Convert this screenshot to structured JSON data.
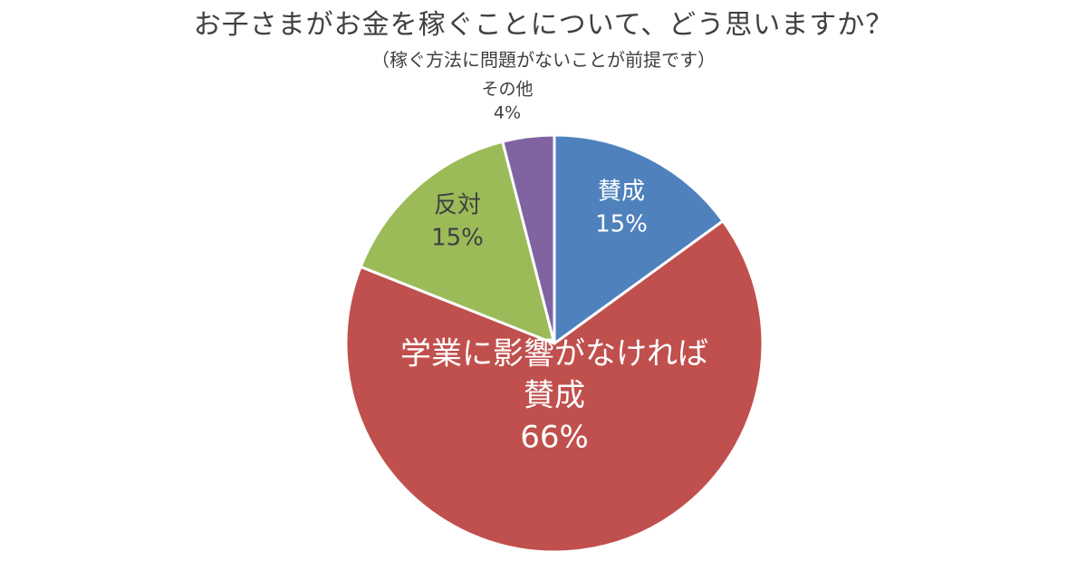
{
  "title": "お子さまがお金を稼ぐことについて、どう思いますか？",
  "subtitle": "（稼ぐ方法に問題がないことが前提です）",
  "chart_data": {
    "type": "pie",
    "title": "お子さまがお金を稼ぐことについて、どう思いますか？",
    "subtitle": "（稼ぐ方法に問題がないことが前提です）",
    "start": "12 o'clock",
    "direction": "clockwise",
    "slices": [
      {
        "label": [
          "賛成"
        ],
        "value": 15,
        "value_label": "15%",
        "color": "#4f81bd",
        "label_color": "#ffffff",
        "label_position": "inside"
      },
      {
        "label": [
          "学業に影響がなければ",
          "賛成"
        ],
        "value": 66,
        "value_label": "66%",
        "color": "#c0504d",
        "label_color": "#ffffff",
        "label_position": "inside"
      },
      {
        "label": [
          "反対"
        ],
        "value": 15,
        "value_label": "15%",
        "color": "#9bbb59",
        "label_color": "#404040",
        "label_position": "inside"
      },
      {
        "label": [
          "その他"
        ],
        "value": 4,
        "value_label": "4%",
        "color": "#8064a2",
        "label_color": "#404040",
        "label_position": "outside"
      }
    ]
  }
}
